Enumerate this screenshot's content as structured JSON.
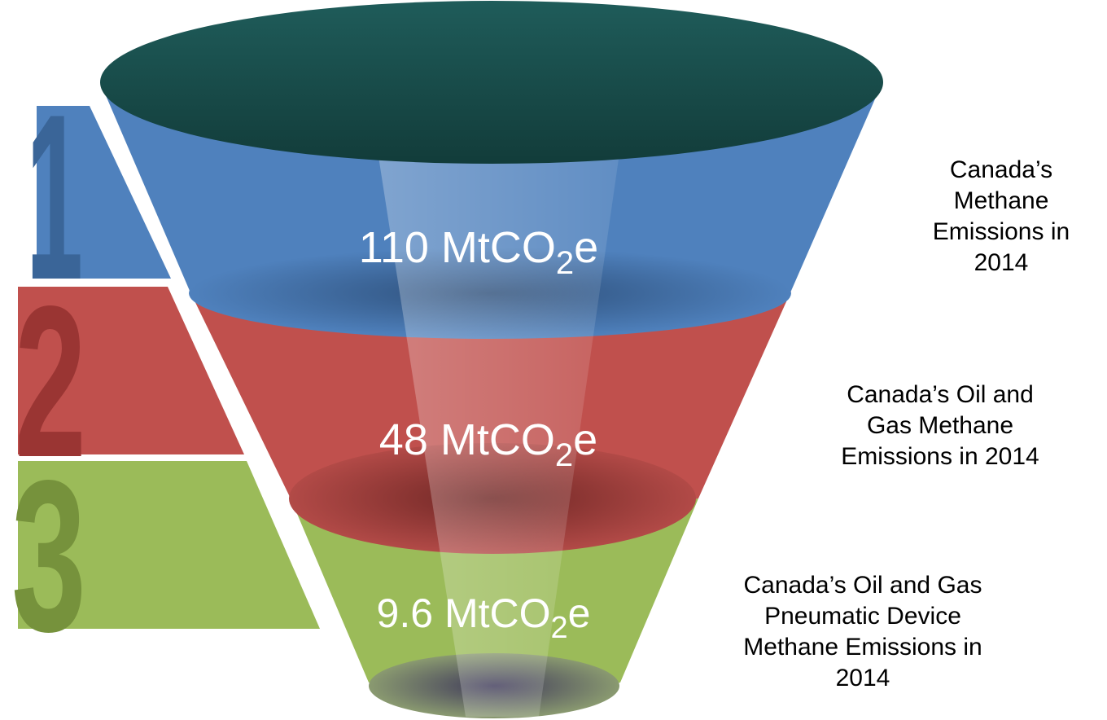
{
  "stages": [
    {
      "number": "1",
      "value": "110",
      "unit_prefix": "MtCO",
      "unit_subscript": "2",
      "unit_suffix": "e",
      "description_lines": [
        "Canada’s",
        "Methane",
        "Emissions in",
        "2014"
      ],
      "color": "#4f81bd",
      "number_color": "#3a6598"
    },
    {
      "number": "2",
      "value": "48",
      "unit_prefix": "MtCO",
      "unit_subscript": "2",
      "unit_suffix": "e",
      "description_lines": [
        "Canada’s Oil and",
        "Gas Methane",
        "Emissions in 2014"
      ],
      "color": "#c0504d",
      "number_color": "#9a3533"
    },
    {
      "number": "3",
      "value": "9.6",
      "unit_prefix": "MtCO",
      "unit_subscript": "2",
      "unit_suffix": "e",
      "description_lines": [
        "Canada’s Oil and Gas",
        "Pneumatic Device",
        "Methane Emissions in",
        "2014"
      ],
      "color": "#9bbb59",
      "number_color": "#76923c"
    }
  ],
  "funnel_top_color": "#1e5a57"
}
